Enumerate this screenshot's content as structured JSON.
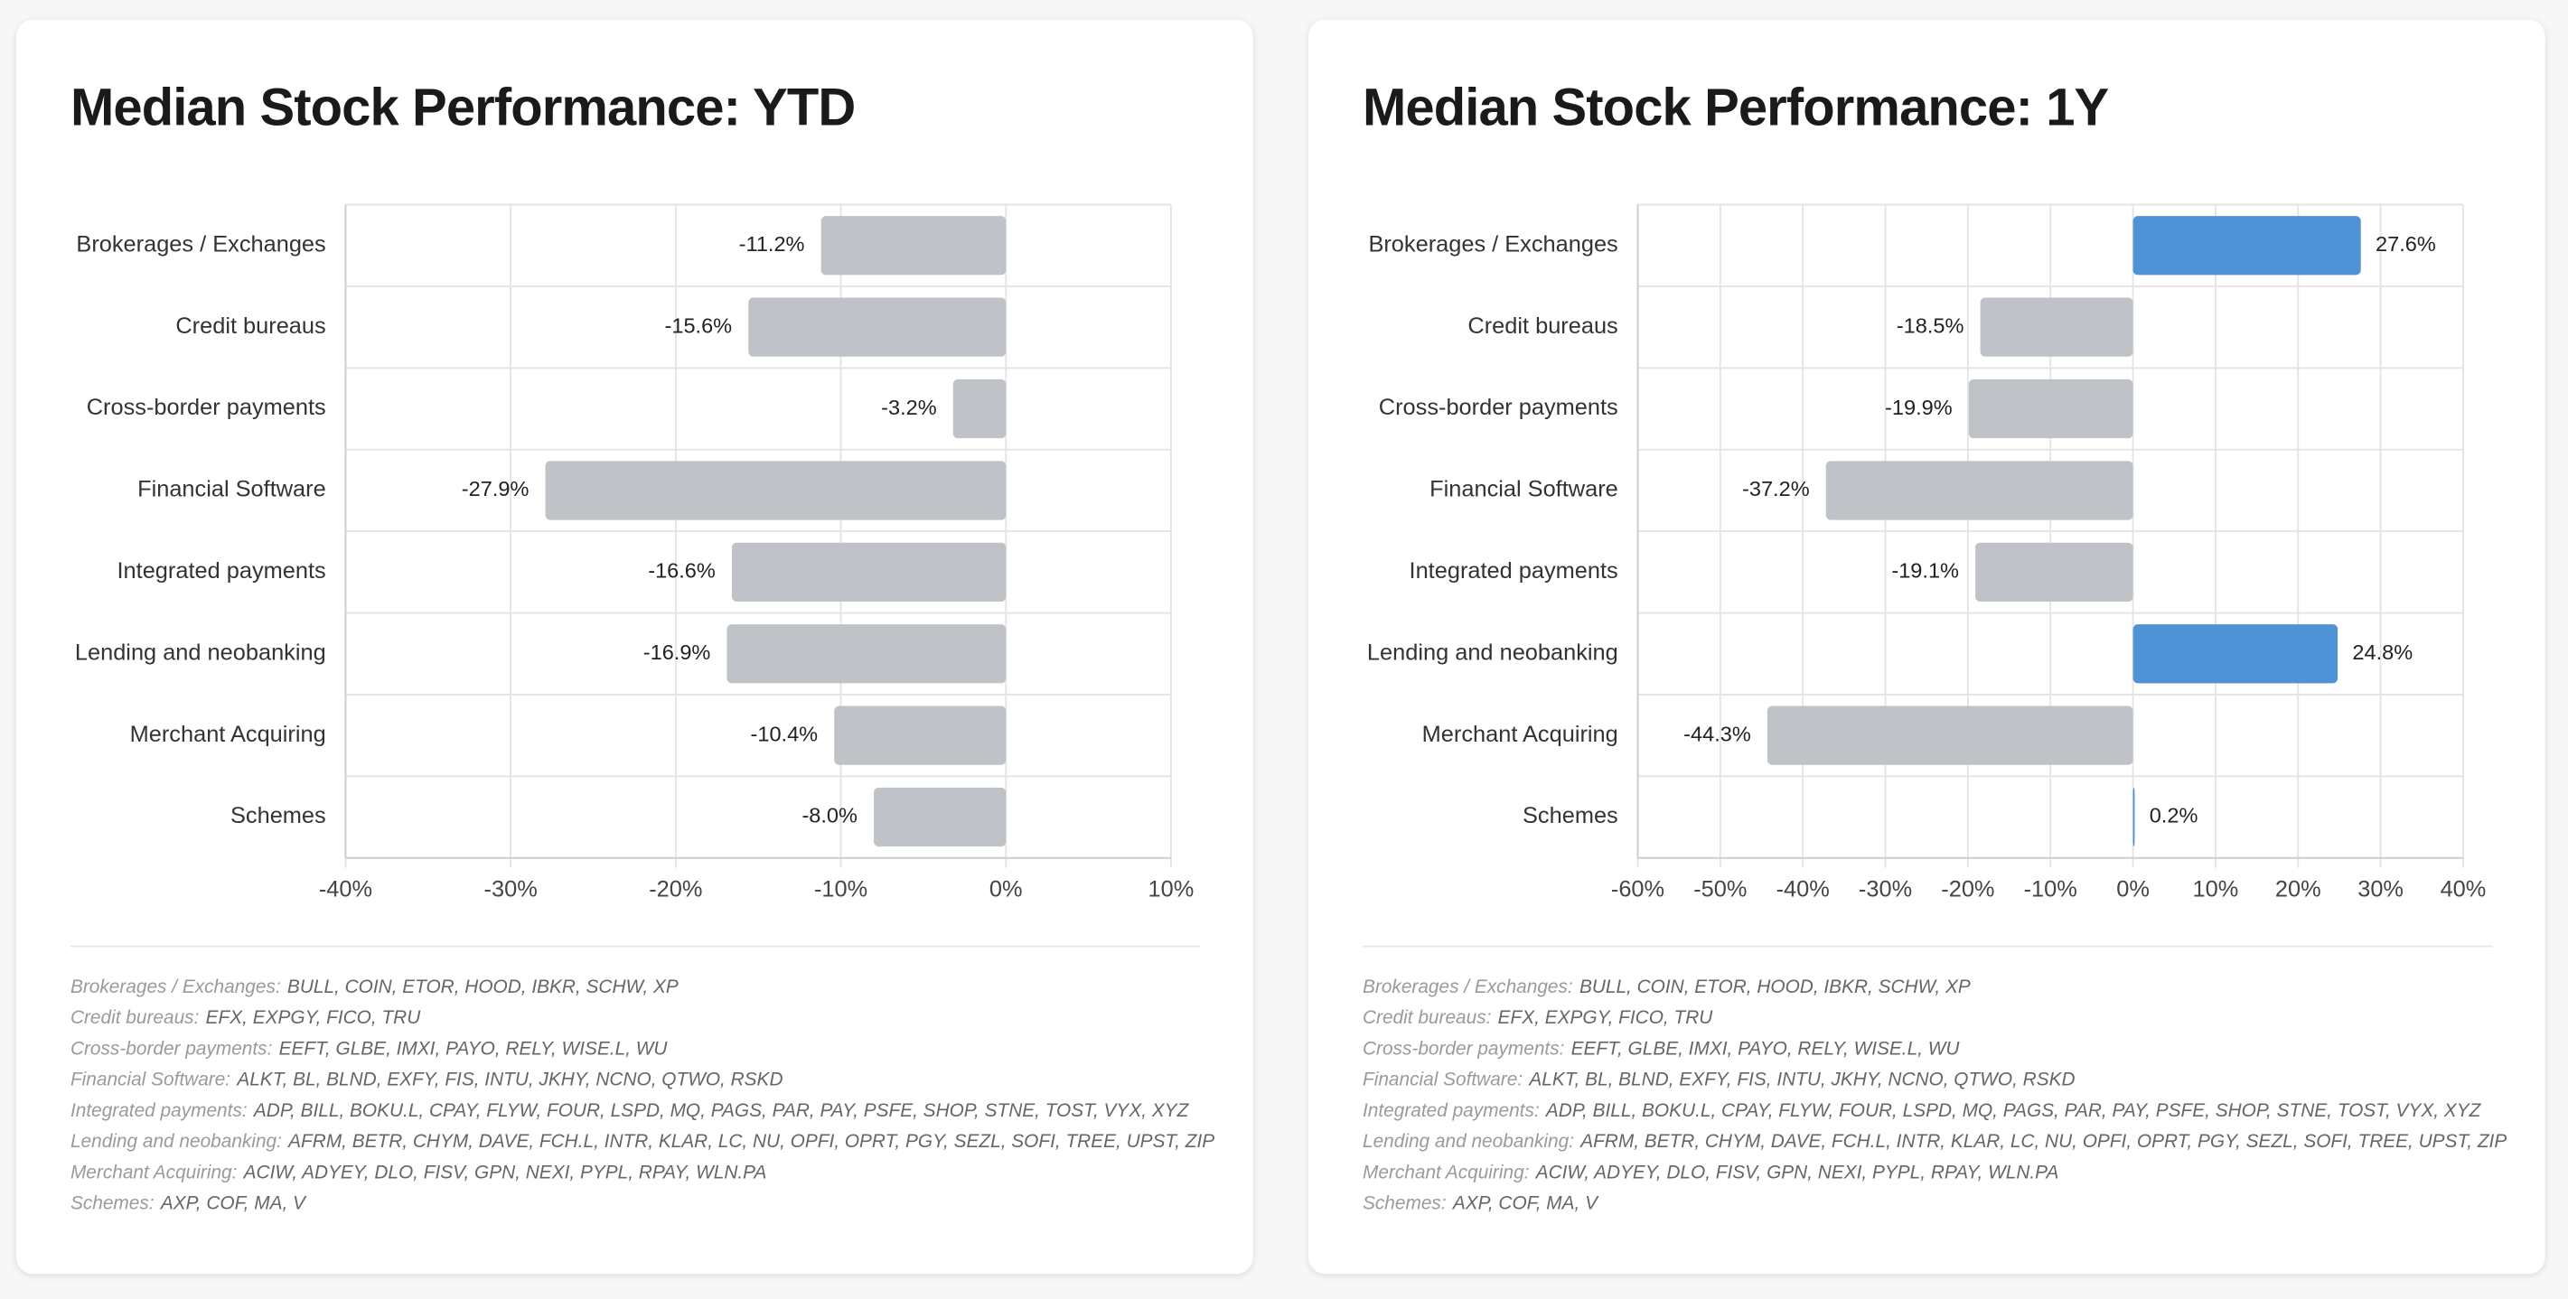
{
  "chart_data": [
    {
      "type": "bar",
      "orientation": "horizontal",
      "title": "Median Stock Performance: YTD",
      "categories": [
        "Brokerages / Exchanges",
        "Credit bureaus",
        "Cross-border payments",
        "Financial Software",
        "Integrated payments",
        "Lending and neobanking",
        "Merchant Acquiring",
        "Schemes"
      ],
      "values": [
        -11.2,
        -15.6,
        -3.2,
        -27.9,
        -16.6,
        -16.9,
        -10.4,
        -8.0
      ],
      "value_labels": [
        "-11.2%",
        "-15.6%",
        "-3.2%",
        "-27.9%",
        "-16.6%",
        "-16.9%",
        "-10.4%",
        "-8.0%"
      ],
      "xlim": [
        -40,
        10
      ],
      "xticks": [
        {
          "value": -40,
          "label": "-40%"
        },
        {
          "value": -30,
          "label": "-30%"
        },
        {
          "value": -20,
          "label": "-20%"
        },
        {
          "value": -10,
          "label": "-10%"
        },
        {
          "value": 0,
          "label": "0%"
        },
        {
          "value": 10,
          "label": "10%"
        }
      ],
      "grid": true,
      "negative_color": "#bfc2c6",
      "positive_color": "#4f93d6",
      "notes": [
        {
          "label": "Brokerages / Exchanges:",
          "tickers": "BULL, COIN, ETOR, HOOD, IBKR, SCHW, XP"
        },
        {
          "label": "Credit bureaus:",
          "tickers": "EFX, EXPGY, FICO, TRU"
        },
        {
          "label": "Cross-border payments:",
          "tickers": "EEFT, GLBE, IMXI, PAYO, RELY, WISE.L, WU"
        },
        {
          "label": "Financial Software:",
          "tickers": "ALKT, BL, BLND, EXFY, FIS, INTU, JKHY, NCNO, QTWO, RSKD"
        },
        {
          "label": "Integrated payments:",
          "tickers": "ADP, BILL, BOKU.L, CPAY, FLYW, FOUR, LSPD, MQ, PAGS, PAR, PAY, PSFE, SHOP, STNE, TOST, VYX, XYZ"
        },
        {
          "label": "Lending and neobanking:",
          "tickers": "AFRM, BETR, CHYM, DAVE, FCH.L, INTR, KLAR, LC, NU, OPFI, OPRT, PGY, SEZL, SOFI, TREE, UPST, ZIP"
        },
        {
          "label": "Merchant Acquiring:",
          "tickers": "ACIW, ADYEY, DLO, FISV, GPN, NEXI, PYPL, RPAY, WLN.PA"
        },
        {
          "label": "Schemes:",
          "tickers": "AXP, COF, MA, V"
        }
      ]
    },
    {
      "type": "bar",
      "orientation": "horizontal",
      "title": "Median Stock Performance: 1Y",
      "categories": [
        "Brokerages / Exchanges",
        "Credit bureaus",
        "Cross-border payments",
        "Financial Software",
        "Integrated payments",
        "Lending and neobanking",
        "Merchant Acquiring",
        "Schemes"
      ],
      "values": [
        27.6,
        -18.5,
        -19.9,
        -37.2,
        -19.1,
        24.8,
        -44.3,
        0.2
      ],
      "value_labels": [
        "27.6%",
        "-18.5%",
        "-19.9%",
        "-37.2%",
        "-19.1%",
        "24.8%",
        "-44.3%",
        "0.2%"
      ],
      "xlim": [
        -60,
        40
      ],
      "xticks": [
        {
          "value": -60,
          "label": "-60%"
        },
        {
          "value": -50,
          "label": "-50%"
        },
        {
          "value": -40,
          "label": "-40%"
        },
        {
          "value": -30,
          "label": "-30%"
        },
        {
          "value": -20,
          "label": "-20%"
        },
        {
          "value": -10,
          "label": "-10%"
        },
        {
          "value": 0,
          "label": "0%"
        },
        {
          "value": 10,
          "label": "10%"
        },
        {
          "value": 20,
          "label": "20%"
        },
        {
          "value": 30,
          "label": "30%"
        },
        {
          "value": 40,
          "label": "40%"
        }
      ],
      "grid": true,
      "negative_color": "#bfc2c6",
      "positive_color": "#4f93d6",
      "notes": [
        {
          "label": "Brokerages / Exchanges:",
          "tickers": "BULL, COIN, ETOR, HOOD, IBKR, SCHW, XP"
        },
        {
          "label": "Credit bureaus:",
          "tickers": "EFX, EXPGY, FICO, TRU"
        },
        {
          "label": "Cross-border payments:",
          "tickers": "EEFT, GLBE, IMXI, PAYO, RELY, WISE.L, WU"
        },
        {
          "label": "Financial Software:",
          "tickers": "ALKT, BL, BLND, EXFY, FIS, INTU, JKHY, NCNO, QTWO, RSKD"
        },
        {
          "label": "Integrated payments:",
          "tickers": "ADP, BILL, BOKU.L, CPAY, FLYW, FOUR, LSPD, MQ, PAGS, PAR, PAY, PSFE, SHOP, STNE, TOST, VYX, XYZ"
        },
        {
          "label": "Lending and neobanking:",
          "tickers": "AFRM, BETR, CHYM, DAVE, FCH.L, INTR, KLAR, LC, NU, OPFI, OPRT, PGY, SEZL, SOFI, TREE, UPST, ZIP"
        },
        {
          "label": "Merchant Acquiring:",
          "tickers": "ACIW, ADYEY, DLO, FISV, GPN, NEXI, PYPL, RPAY, WLN.PA"
        },
        {
          "label": "Schemes:",
          "tickers": "AXP, COF, MA, V"
        }
      ]
    }
  ]
}
